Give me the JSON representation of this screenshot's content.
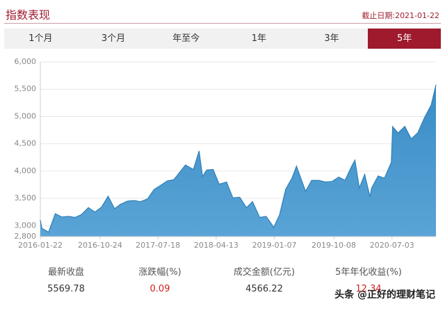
{
  "header": {
    "title": "指数表现",
    "date": "截止日期:2021-01-22"
  },
  "tabs": [
    "1个月",
    "3个月",
    "年至今",
    "1年",
    "3年",
    "5年"
  ],
  "active_tab": 5,
  "chart_data": {
    "type": "area",
    "x": [
      "2016-01-22",
      "2016-01-29",
      "2016-02-29",
      "2016-03-31",
      "2016-04-29",
      "2016-05-31",
      "2016-06-30",
      "2016-07-29",
      "2016-08-31",
      "2016-09-30",
      "2016-10-31",
      "2016-11-30",
      "2016-12-30",
      "2017-01-26",
      "2017-02-28",
      "2017-03-31",
      "2017-04-28",
      "2017-05-31",
      "2017-06-30",
      "2017-07-31",
      "2017-08-31",
      "2017-09-29",
      "2017-10-31",
      "2017-11-22",
      "2017-12-29",
      "2018-01-24",
      "2018-02-09",
      "2018-02-28",
      "2018-03-30",
      "2018-04-27",
      "2018-05-31",
      "2018-06-29",
      "2018-07-31",
      "2018-08-31",
      "2018-09-28",
      "2018-10-31",
      "2018-11-30",
      "2018-12-28",
      "2019-01-03",
      "2019-01-31",
      "2019-02-28",
      "2019-03-29",
      "2019-04-19",
      "2019-05-31",
      "2019-06-28",
      "2019-07-31",
      "2019-08-30",
      "2019-09-30",
      "2019-10-31",
      "2019-11-29",
      "2019-12-31",
      "2020-01-14",
      "2020-02-03",
      "2020-02-28",
      "2020-03-23",
      "2020-03-31",
      "2020-04-30",
      "2020-05-29",
      "2020-06-30",
      "2020-07-06",
      "2020-07-31",
      "2020-08-31",
      "2020-09-30",
      "2020-10-30",
      "2020-11-30",
      "2020-12-31",
      "2021-01-22"
    ],
    "values": [
      3100,
      2950,
      2880,
      3220,
      3160,
      3170,
      3150,
      3200,
      3330,
      3250,
      3340,
      3540,
      3310,
      3390,
      3450,
      3460,
      3440,
      3490,
      3660,
      3740,
      3820,
      3840,
      4000,
      4110,
      4030,
      4370,
      3900,
      4020,
      4030,
      3760,
      3800,
      3510,
      3520,
      3330,
      3440,
      3150,
      3170,
      3010,
      2960,
      3200,
      3670,
      3870,
      4090,
      3630,
      3830,
      3830,
      3800,
      3810,
      3890,
      3830,
      4100,
      4200,
      3690,
      3940,
      3530,
      3690,
      3910,
      3870,
      4160,
      4815,
      4700,
      4820,
      4590,
      4700,
      4980,
      5210,
      5580
    ],
    "color": "#2f80b9",
    "xlim": [
      "2016-01-22",
      "2021-01-22"
    ],
    "xticks": [
      "2016-01-22",
      "2016-10-24",
      "2017-07-18",
      "2018-04-13",
      "2019-01-07",
      "2019-10-08",
      "2020-07-03"
    ],
    "ylim": [
      2800,
      6000
    ],
    "yticks": [
      {
        "value": 2800,
        "label": "2,800"
      },
      {
        "value": 3000,
        "label": "3,000"
      },
      {
        "value": 3500,
        "label": "3,500"
      },
      {
        "value": 4000,
        "label": "4,000"
      },
      {
        "value": 4500,
        "label": "4,500"
      },
      {
        "value": 5000,
        "label": "5,000"
      },
      {
        "value": 5500,
        "label": "5,500"
      },
      {
        "value": 6000,
        "label": "6,000"
      }
    ],
    "grid": true
  },
  "stats": [
    {
      "label": "最新收盘",
      "value": "5569.78",
      "highlight": false
    },
    {
      "label": "涨跌幅(%)",
      "value": "0.09",
      "highlight": true
    },
    {
      "label": "成交金额(亿元)",
      "value": "4566.22",
      "highlight": false
    },
    {
      "label": "5年年化收益(%)",
      "value": "12.34",
      "highlight": true
    }
  ],
  "watermark": "头条 @正好的理财笔记"
}
